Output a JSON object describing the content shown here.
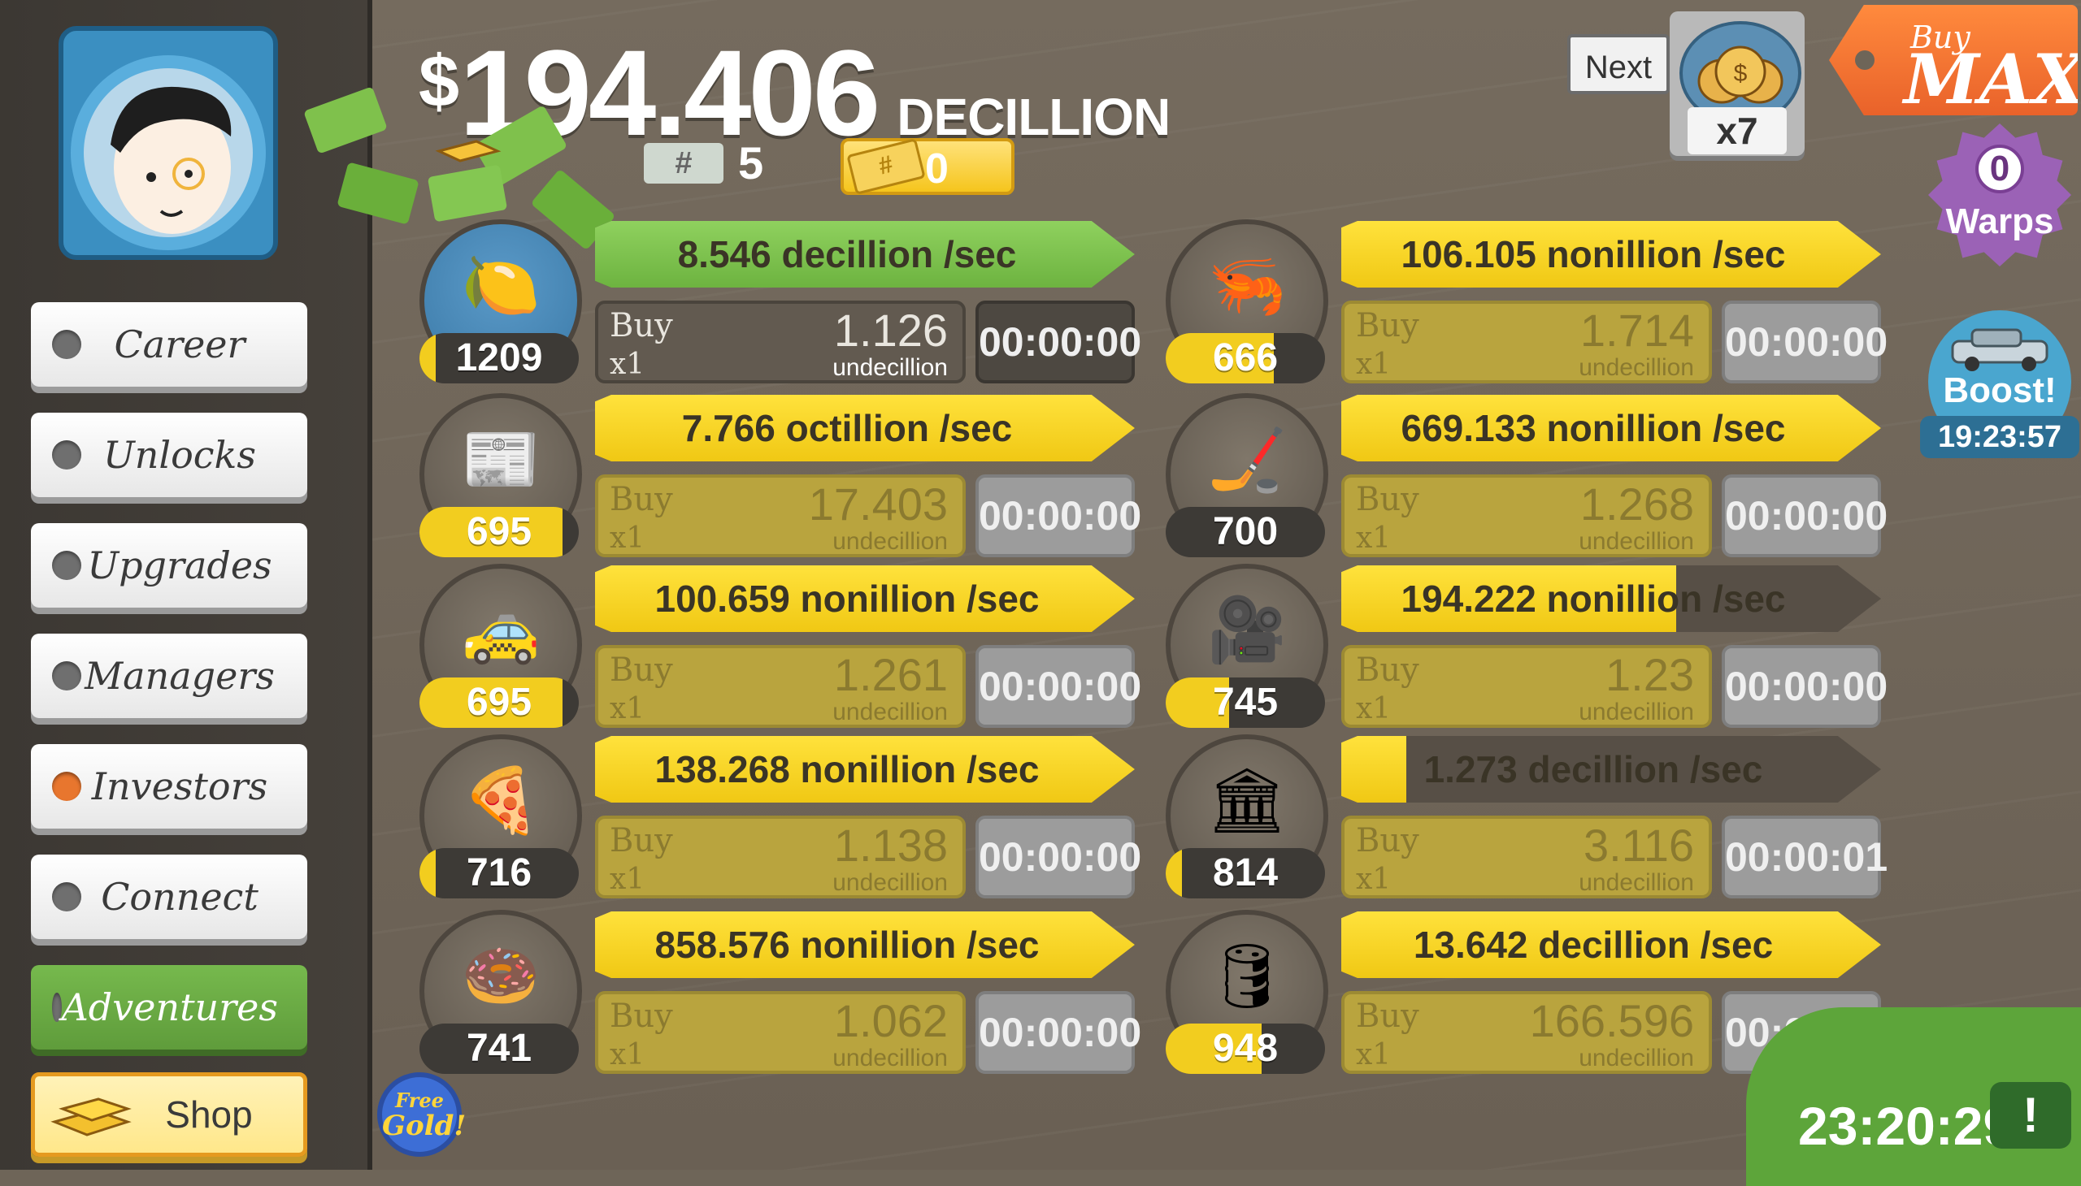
{
  "sidebar": {
    "items": [
      {
        "label": "Career"
      },
      {
        "label": "Unlocks"
      },
      {
        "label": "Upgrades"
      },
      {
        "label": "Managers"
      },
      {
        "label": "Investors"
      },
      {
        "label": "Connect"
      },
      {
        "label": "Adventures"
      },
      {
        "label": "Shop"
      }
    ]
  },
  "header": {
    "currency_symbol": "$",
    "amount": "194.406",
    "unit": "DECILLION",
    "mega_ticket_icon": "#",
    "mega_count": "5",
    "gold_count": "0"
  },
  "next": {
    "label": "Next",
    "multiplier": "x7"
  },
  "buymax": {
    "buy": "Buy",
    "max": "MAX"
  },
  "warps": {
    "count": "0",
    "label": "Warps"
  },
  "boost": {
    "label": "Boost!",
    "time": "19:23:57"
  },
  "businesses": [
    {
      "icon": "lemon-icon",
      "glyph": "🍋",
      "count": "1209",
      "count_fill": 0.1,
      "rate": "8.546 decillion /sec",
      "rate_fill": 1.0,
      "rate_color": "green",
      "buy": "Buy",
      "qty": "x1",
      "cost": "1.126",
      "cost_unit": "undecillion",
      "timer": "00:00:00",
      "affordable": true
    },
    {
      "icon": "shrimp-icon",
      "glyph": "🦐",
      "count": "666",
      "count_fill": 0.68,
      "rate": "106.105 nonillion /sec",
      "rate_fill": 1.0,
      "rate_color": "yellow",
      "buy": "Buy",
      "qty": "x1",
      "cost": "1.714",
      "cost_unit": "undecillion",
      "timer": "00:00:00",
      "affordable": false
    },
    {
      "icon": "newspaper-icon",
      "glyph": "📰",
      "count": "695",
      "count_fill": 0.9,
      "rate": "7.766 octillion /sec",
      "rate_fill": 1.0,
      "rate_color": "yellow",
      "buy": "Buy",
      "qty": "x1",
      "cost": "17.403",
      "cost_unit": "undecillion",
      "timer": "00:00:00",
      "affordable": false
    },
    {
      "icon": "hockey-icon",
      "glyph": "🏒",
      "count": "700",
      "count_fill": 0.0,
      "rate": "669.133 nonillion /sec",
      "rate_fill": 1.0,
      "rate_color": "yellow",
      "buy": "Buy",
      "qty": "x1",
      "cost": "1.268",
      "cost_unit": "undecillion",
      "timer": "00:00:00",
      "affordable": false
    },
    {
      "icon": "car-wash-icon",
      "glyph": "🚕",
      "count": "695",
      "count_fill": 0.9,
      "rate": "100.659 nonillion /sec",
      "rate_fill": 1.0,
      "rate_color": "yellow",
      "buy": "Buy",
      "qty": "x1",
      "cost": "1.261",
      "cost_unit": "undecillion",
      "timer": "00:00:00",
      "affordable": false
    },
    {
      "icon": "movie-camera-icon",
      "glyph": "🎥",
      "count": "745",
      "count_fill": 0.4,
      "rate": "194.222 nonillion /sec",
      "rate_fill": 0.62,
      "rate_color": "yellow",
      "buy": "Buy",
      "qty": "x1",
      "cost": "1.23",
      "cost_unit": "undecillion",
      "timer": "00:00:00",
      "affordable": false
    },
    {
      "icon": "pizza-icon",
      "glyph": "🍕",
      "count": "716",
      "count_fill": 0.1,
      "rate": "138.268 nonillion /sec",
      "rate_fill": 1.0,
      "rate_color": "yellow",
      "buy": "Buy",
      "qty": "x1",
      "cost": "1.138",
      "cost_unit": "undecillion",
      "timer": "00:00:00",
      "affordable": false
    },
    {
      "icon": "bank-icon",
      "glyph": "🏛",
      "count": "814",
      "count_fill": 0.1,
      "rate": "1.273 decillion /sec",
      "rate_fill": 0.12,
      "rate_color": "yellow",
      "buy": "Buy",
      "qty": "x1",
      "cost": "3.116",
      "cost_unit": "undecillion",
      "timer": "00:00:01",
      "affordable": false
    },
    {
      "icon": "donut-icon",
      "glyph": "🍩",
      "count": "741",
      "count_fill": 0.0,
      "rate": "858.576 nonillion /sec",
      "rate_fill": 1.0,
      "rate_color": "yellow",
      "buy": "Buy",
      "qty": "x1",
      "cost": "1.062",
      "cost_unit": "undecillion",
      "timer": "00:00:00",
      "affordable": false
    },
    {
      "icon": "oil-rig-icon",
      "glyph": "🛢",
      "count": "948",
      "count_fill": 0.6,
      "rate": "13.642 decillion /sec",
      "rate_fill": 1.0,
      "rate_color": "yellow",
      "buy": "Buy",
      "qty": "x1",
      "cost": "166.596",
      "cost_unit": "undecillion",
      "timer": "00:00:00",
      "affordable": false
    }
  ],
  "free_gold": {
    "line1": "Free",
    "line2": "Gold!"
  },
  "tv": {
    "time": "23:20:29",
    "alert": "!"
  }
}
